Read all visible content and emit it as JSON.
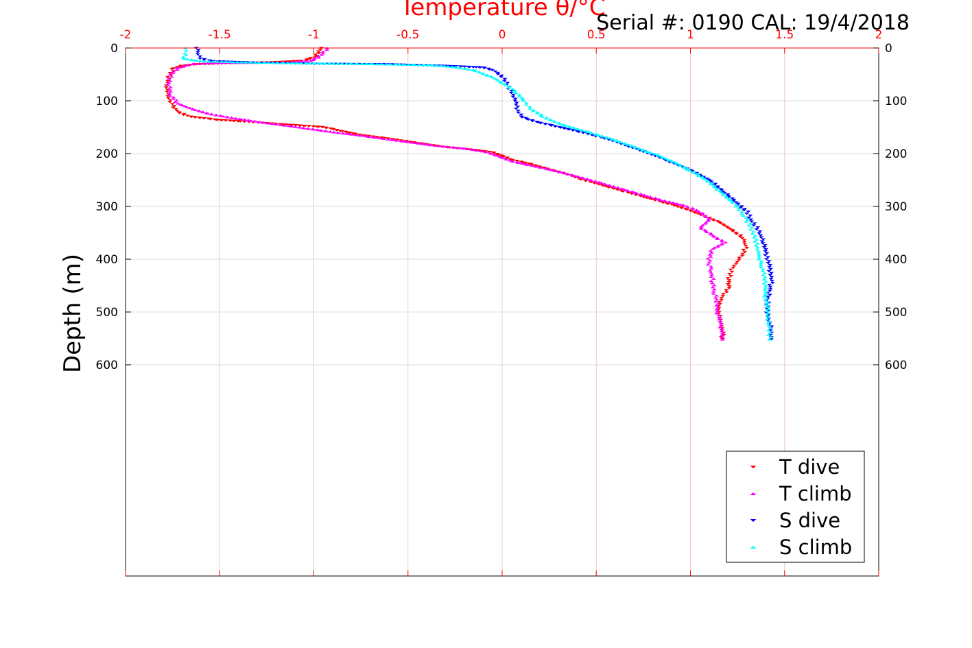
{
  "chart_data": {
    "type": "scatter",
    "title": "Temperature θ/°C",
    "annotation": "Serial #: 0190  CAL: 19/4/2018",
    "xlabel": "Temperature θ/°C",
    "ylabel": "Depth (m)",
    "xlim": [
      -2,
      2
    ],
    "ylim": [
      0,
      1000
    ],
    "y_reversed": true,
    "x_ticks": [
      "-2",
      "-1.5",
      "-1",
      "-0.5",
      "0",
      "0.5",
      "1",
      "1.5",
      "2"
    ],
    "x_tick_values": [
      -2,
      -1.5,
      -1,
      -0.5,
      0,
      0.5,
      1,
      1.5,
      2
    ],
    "y_ticks": [
      "0",
      "100",
      "200",
      "300",
      "400",
      "500",
      "600"
    ],
    "y_tick_values": [
      0,
      100,
      200,
      300,
      400,
      500,
      600
    ],
    "grid": true,
    "x_axis_color": "#ff0000",
    "legend_position": "bottom-right",
    "series": [
      {
        "name": "T dive",
        "marker": "triangle-down",
        "color": "#ff0000",
        "points": [
          [
            -0.96,
            0
          ],
          [
            -0.98,
            10
          ],
          [
            -1.0,
            18
          ],
          [
            -1.05,
            24
          ],
          [
            -1.2,
            27
          ],
          [
            -1.45,
            29
          ],
          [
            -1.62,
            31
          ],
          [
            -1.7,
            34
          ],
          [
            -1.75,
            40
          ],
          [
            -1.77,
            55
          ],
          [
            -1.78,
            75
          ],
          [
            -1.77,
            95
          ],
          [
            -1.75,
            110
          ],
          [
            -1.72,
            122
          ],
          [
            -1.66,
            130
          ],
          [
            -1.52,
            136
          ],
          [
            -1.35,
            140
          ],
          [
            -1.15,
            145
          ],
          [
            -0.95,
            150
          ],
          [
            -0.85,
            158
          ],
          [
            -0.75,
            165
          ],
          [
            -0.6,
            172
          ],
          [
            -0.45,
            180
          ],
          [
            -0.3,
            188
          ],
          [
            -0.15,
            193
          ],
          [
            -0.05,
            198
          ],
          [
            0.0,
            205
          ],
          [
            0.05,
            212
          ],
          [
            0.15,
            220
          ],
          [
            0.25,
            230
          ],
          [
            0.35,
            240
          ],
          [
            0.45,
            252
          ],
          [
            0.55,
            262
          ],
          [
            0.65,
            272
          ],
          [
            0.75,
            282
          ],
          [
            0.85,
            292
          ],
          [
            0.95,
            302
          ],
          [
            1.05,
            315
          ],
          [
            1.15,
            330
          ],
          [
            1.22,
            345
          ],
          [
            1.28,
            360
          ],
          [
            1.3,
            375
          ],
          [
            1.28,
            390
          ],
          [
            1.25,
            405
          ],
          [
            1.22,
            420
          ],
          [
            1.2,
            440
          ],
          [
            1.2,
            455
          ],
          [
            1.17,
            470
          ],
          [
            1.15,
            485
          ],
          [
            1.15,
            500
          ],
          [
            1.16,
            515
          ],
          [
            1.17,
            535
          ],
          [
            1.17,
            552
          ]
        ]
      },
      {
        "name": "T climb",
        "marker": "triangle-up",
        "color": "#ff00ff",
        "points": [
          [
            -0.93,
            0
          ],
          [
            -0.95,
            10
          ],
          [
            -0.98,
            18
          ],
          [
            -1.02,
            24
          ],
          [
            -1.15,
            27
          ],
          [
            -1.3,
            28
          ],
          [
            -1.5,
            28
          ],
          [
            -1.65,
            30
          ],
          [
            -1.72,
            38
          ],
          [
            -1.76,
            50
          ],
          [
            -1.77,
            70
          ],
          [
            -1.76,
            90
          ],
          [
            -1.72,
            105
          ],
          [
            -1.65,
            115
          ],
          [
            -1.55,
            125
          ],
          [
            -1.42,
            133
          ],
          [
            -1.25,
            142
          ],
          [
            -1.08,
            150
          ],
          [
            -0.92,
            158
          ],
          [
            -0.7,
            168
          ],
          [
            -0.52,
            177
          ],
          [
            -0.35,
            185
          ],
          [
            -0.2,
            190
          ],
          [
            -0.08,
            197
          ],
          [
            -0.02,
            205
          ],
          [
            0.05,
            214
          ],
          [
            0.15,
            222
          ],
          [
            0.28,
            232
          ],
          [
            0.4,
            243
          ],
          [
            0.52,
            255
          ],
          [
            0.62,
            265
          ],
          [
            0.72,
            275
          ],
          [
            0.85,
            288
          ],
          [
            0.97,
            298
          ],
          [
            1.05,
            310
          ],
          [
            1.1,
            325
          ],
          [
            1.05,
            340
          ],
          [
            1.12,
            355
          ],
          [
            1.18,
            368
          ],
          [
            1.12,
            380
          ],
          [
            1.1,
            395
          ],
          [
            1.1,
            410
          ],
          [
            1.11,
            425
          ],
          [
            1.12,
            445
          ],
          [
            1.13,
            465
          ],
          [
            1.14,
            480
          ],
          [
            1.14,
            495
          ],
          [
            1.15,
            510
          ],
          [
            1.16,
            525
          ],
          [
            1.17,
            540
          ],
          [
            1.17,
            552
          ]
        ]
      },
      {
        "name": "S dive",
        "marker": "triangle-down",
        "color": "#0000ff",
        "points": [
          [
            -1.62,
            0
          ],
          [
            -1.61,
            12
          ],
          [
            -1.6,
            20
          ],
          [
            -1.55,
            25
          ],
          [
            -1.3,
            28
          ],
          [
            -1.0,
            30
          ],
          [
            -0.6,
            31
          ],
          [
            -0.3,
            34
          ],
          [
            -0.1,
            37
          ],
          [
            -0.05,
            42
          ],
          [
            0.0,
            55
          ],
          [
            0.03,
            70
          ],
          [
            0.05,
            85
          ],
          [
            0.07,
            100
          ],
          [
            0.08,
            115
          ],
          [
            0.1,
            130
          ],
          [
            0.18,
            140
          ],
          [
            0.3,
            150
          ],
          [
            0.45,
            162
          ],
          [
            0.58,
            175
          ],
          [
            0.7,
            190
          ],
          [
            0.82,
            205
          ],
          [
            0.92,
            220
          ],
          [
            1.02,
            235
          ],
          [
            1.1,
            250
          ],
          [
            1.15,
            265
          ],
          [
            1.2,
            280
          ],
          [
            1.25,
            295
          ],
          [
            1.3,
            310
          ],
          [
            1.32,
            325
          ],
          [
            1.35,
            340
          ],
          [
            1.38,
            355
          ],
          [
            1.39,
            370
          ],
          [
            1.4,
            385
          ],
          [
            1.41,
            400
          ],
          [
            1.42,
            415
          ],
          [
            1.43,
            430
          ],
          [
            1.43,
            445
          ],
          [
            1.42,
            460
          ],
          [
            1.41,
            475
          ],
          [
            1.41,
            490
          ],
          [
            1.41,
            505
          ],
          [
            1.42,
            520
          ],
          [
            1.43,
            535
          ],
          [
            1.43,
            552
          ]
        ]
      },
      {
        "name": "S climb",
        "marker": "triangle-up",
        "color": "#00ffff",
        "points": [
          [
            -1.68,
            0
          ],
          [
            -1.68,
            10
          ],
          [
            -1.69,
            20
          ],
          [
            -1.6,
            25
          ],
          [
            -1.4,
            27
          ],
          [
            -1.2,
            28
          ],
          [
            -0.75,
            30
          ],
          [
            -0.4,
            32
          ],
          [
            -0.25,
            36
          ],
          [
            -0.15,
            42
          ],
          [
            -0.05,
            55
          ],
          [
            0.02,
            70
          ],
          [
            0.08,
            85
          ],
          [
            0.12,
            100
          ],
          [
            0.15,
            115
          ],
          [
            0.22,
            130
          ],
          [
            0.32,
            145
          ],
          [
            0.45,
            158
          ],
          [
            0.58,
            172
          ],
          [
            0.7,
            187
          ],
          [
            0.82,
            202
          ],
          [
            0.92,
            217
          ],
          [
            1.0,
            232
          ],
          [
            1.08,
            248
          ],
          [
            1.13,
            263
          ],
          [
            1.18,
            278
          ],
          [
            1.23,
            293
          ],
          [
            1.27,
            310
          ],
          [
            1.3,
            325
          ],
          [
            1.32,
            340
          ],
          [
            1.34,
            355
          ],
          [
            1.35,
            370
          ],
          [
            1.36,
            385
          ],
          [
            1.37,
            400
          ],
          [
            1.38,
            415
          ],
          [
            1.39,
            430
          ],
          [
            1.4,
            450
          ],
          [
            1.4,
            470
          ],
          [
            1.41,
            490
          ],
          [
            1.41,
            510
          ],
          [
            1.42,
            530
          ],
          [
            1.42,
            552
          ]
        ]
      }
    ]
  }
}
